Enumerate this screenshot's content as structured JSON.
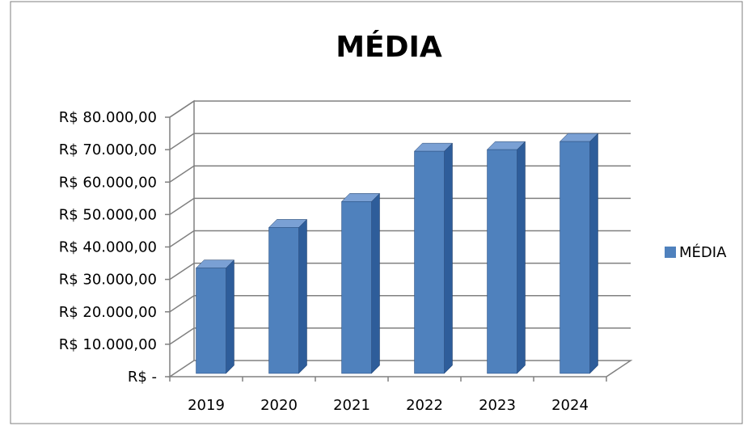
{
  "chart_data": {
    "type": "bar",
    "title": "MÉDIA",
    "categories": [
      "2019",
      "2020",
      "2021",
      "2022",
      "2023",
      "2024"
    ],
    "series": [
      {
        "name": "MÉDIA",
        "values": [
          33500,
          46000,
          54000,
          69500,
          70000,
          72500
        ]
      }
    ],
    "ylim": [
      0,
      80000
    ],
    "y_ticks": [
      0,
      10000,
      20000,
      30000,
      40000,
      50000,
      60000,
      70000,
      80000
    ],
    "y_tick_labels": [
      "R$ -",
      "R$ 10.000,00",
      "R$ 20.000,00",
      "R$ 30.000,00",
      "R$ 40.000,00",
      "R$ 50.000,00",
      "R$ 60.000,00",
      "R$ 70.000,00",
      "R$ 80.000,00"
    ],
    "xlabel": "",
    "ylabel": "",
    "grid": true,
    "legend_position": "right",
    "three_d": true,
    "colors": {
      "bar_front": "#4f81bd",
      "bar_side": "#2e5d9a",
      "bar_top": "#7aa0d4",
      "grid": "#808080",
      "frame_border": "#7f7f7f"
    }
  }
}
